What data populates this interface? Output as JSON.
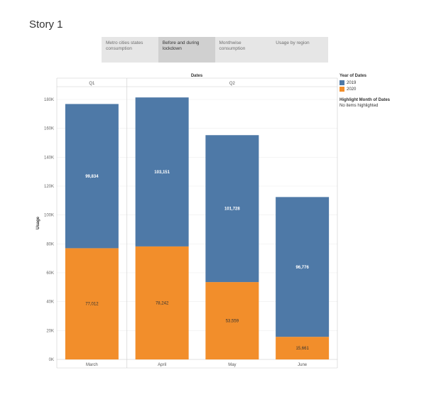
{
  "story": {
    "title": "Story 1",
    "points": [
      {
        "label": "Metro cities states consumption",
        "active": false
      },
      {
        "label": "Before and during lockdown",
        "active": true
      },
      {
        "label": "Monthwise consumption",
        "active": false
      },
      {
        "label": "Usage by region",
        "active": false
      }
    ]
  },
  "legend": {
    "title": "Year of Dates",
    "items": [
      {
        "label": "2019",
        "color": "#4e79a7"
      },
      {
        "label": "2020",
        "color": "#f28e2b"
      }
    ],
    "highlight_title": "Highlight Month of Dates",
    "highlight_value": "No items highlighted"
  },
  "chart_data": {
    "type": "bar",
    "stacked": true,
    "title": "Dates",
    "xlabel": "",
    "ylabel": "Usage",
    "ylim": [
      0,
      180000
    ],
    "yticks": [
      0,
      20000,
      40000,
      60000,
      80000,
      100000,
      120000,
      140000,
      160000,
      180000
    ],
    "ytick_labels": [
      "0K",
      "20K",
      "40K",
      "60K",
      "80K",
      "100K",
      "120K",
      "140K",
      "160K",
      "180K"
    ],
    "quarters": [
      {
        "label": "Q1",
        "categories": [
          "March"
        ]
      },
      {
        "label": "Q2",
        "categories": [
          "April",
          "May",
          "June"
        ]
      }
    ],
    "categories": [
      "March",
      "April",
      "May",
      "June"
    ],
    "series": [
      {
        "name": "2020",
        "color": "#f28e2b",
        "values": [
          77012,
          78242,
          53559,
          15661
        ],
        "labels": [
          "77,012",
          "78,242",
          "53,559",
          "15,661"
        ]
      },
      {
        "name": "2019",
        "color": "#4e79a7",
        "values": [
          99834,
          103151,
          101728,
          96776
        ],
        "labels": [
          "99,834",
          "103,151",
          "101,728",
          "96,776"
        ]
      }
    ],
    "gridlines": true,
    "legend_position": "right"
  }
}
